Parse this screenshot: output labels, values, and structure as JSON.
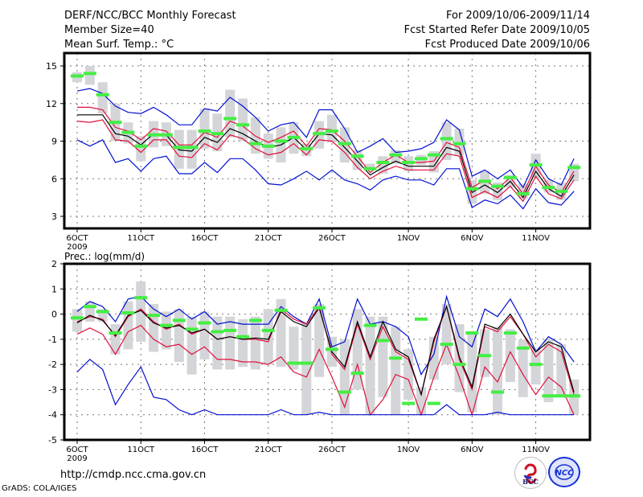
{
  "header": {
    "title": "DERF/NCC/BCC Monthly Forecast",
    "member_size": "Member Size=40",
    "variable": "Mean Surf. Temp.: °C",
    "period": "For 2009/10/06-2009/11/14",
    "start_date": "Fcst Started Refer Date 2009/10/05",
    "produced_date": "Fcst Produced Date 2009/10/06"
  },
  "footer": {
    "url": "http://cmdp.ncc.cma.gov.cn",
    "credit": "GrADS: COLA/IGES",
    "logo_bcc": "BCC",
    "logo_ncc": "NCC"
  },
  "colors": {
    "mean": "#000000",
    "spread": "#e0103a",
    "extreme": "#0010d0",
    "box": "#d4d5d9",
    "median": "#44ee44",
    "grid": "#777777"
  },
  "chart_data": [
    {
      "type": "line",
      "title": "Mean Surf. Temp.: °C",
      "x_ticks": [
        "6OCT",
        "11OCT",
        "16OCT",
        "21OCT",
        "26OCT",
        "1NOV",
        "6NOV",
        "11NOV"
      ],
      "x_tick_days": [
        0,
        5,
        10,
        15,
        20,
        26,
        31,
        36
      ],
      "x_sublabel": "2009",
      "ylim": [
        2,
        16
      ],
      "y_ticks": [
        3,
        6,
        9,
        12,
        15
      ],
      "grid": true,
      "n_days": 40,
      "series": [
        {
          "name": "ensemble-max",
          "color": "extreme",
          "values": [
            13.0,
            13.2,
            12.8,
            11.8,
            11.3,
            11.2,
            11.7,
            11.1,
            10.3,
            10.3,
            11.6,
            11.4,
            12.5,
            11.8,
            10.9,
            9.8,
            10.3,
            10.5,
            9.3,
            11.5,
            11.5,
            10.0,
            8.1,
            8.6,
            9.2,
            8.1,
            8.2,
            8.4,
            8.9,
            10.7,
            9.9,
            6.2,
            6.7,
            6.0,
            6.7,
            5.3,
            7.5,
            6.0,
            5.5,
            7.6
          ]
        },
        {
          "name": "upper-spread",
          "color": "spread",
          "values": [
            11.7,
            11.7,
            11.5,
            10.1,
            9.8,
            9.1,
            10.0,
            9.8,
            8.7,
            8.7,
            9.7,
            9.3,
            10.6,
            10.2,
            9.4,
            8.9,
            9.3,
            9.8,
            8.6,
            10.0,
            9.9,
            9.0,
            7.8,
            6.5,
            7.3,
            7.9,
            7.3,
            7.3,
            7.4,
            8.9,
            8.5,
            5.3,
            5.9,
            5.2,
            6.1,
            4.8,
            7.0,
            5.5,
            4.9,
            6.6
          ]
        },
        {
          "name": "ensemble-mean",
          "color": "mean",
          "values": [
            11.1,
            11.1,
            11.1,
            9.6,
            9.4,
            8.7,
            9.6,
            9.5,
            8.3,
            8.2,
            9.3,
            8.9,
            10.0,
            9.6,
            9.0,
            8.5,
            8.7,
            9.3,
            8.3,
            9.6,
            9.5,
            8.5,
            7.4,
            6.3,
            6.9,
            7.4,
            7.0,
            7.0,
            7.0,
            8.5,
            8.2,
            4.9,
            5.5,
            4.9,
            5.8,
            4.5,
            6.6,
            5.2,
            4.6,
            6.3
          ]
        },
        {
          "name": "lower-spread",
          "color": "spread",
          "values": [
            10.6,
            10.5,
            10.7,
            9.1,
            9.0,
            8.1,
            9.1,
            9.1,
            7.8,
            7.7,
            8.8,
            8.3,
            9.5,
            9.2,
            8.4,
            7.9,
            8.1,
            8.8,
            7.9,
            9.1,
            9.0,
            8.1,
            6.9,
            6.0,
            6.6,
            7.0,
            6.7,
            6.7,
            6.7,
            8.0,
            7.8,
            4.5,
            5.0,
            4.5,
            5.4,
            4.2,
            6.2,
            4.8,
            4.4,
            5.9
          ]
        },
        {
          "name": "ensemble-min",
          "color": "extreme",
          "values": [
            9.1,
            8.6,
            9.1,
            7.3,
            7.6,
            6.6,
            7.6,
            7.8,
            6.4,
            6.4,
            7.3,
            6.5,
            7.6,
            7.6,
            6.7,
            5.6,
            5.5,
            6.0,
            6.6,
            5.9,
            6.7,
            5.9,
            5.6,
            5.1,
            5.9,
            6.2,
            5.9,
            5.9,
            5.5,
            6.8,
            6.8,
            3.7,
            4.3,
            4.0,
            4.7,
            3.6,
            5.2,
            4.1,
            3.9,
            5.0
          ]
        }
      ],
      "boxes": {
        "low": [
          13.7,
          13.5,
          11.2,
          9.0,
          8.8,
          7.4,
          8.5,
          8.6,
          6.8,
          6.8,
          8.4,
          8.2,
          9.3,
          9.0,
          8.0,
          7.6,
          7.3,
          8.0,
          7.8,
          8.4,
          8.9,
          7.3,
          6.7,
          6.9,
          6.4,
          7.2,
          6.6,
          7.1,
          6.5,
          7.5,
          7.9,
          4.0,
          4.8,
          4.3,
          5.3,
          4.4,
          6.1,
          4.9,
          4.3,
          5.8
        ],
        "high": [
          14.5,
          15.0,
          13.7,
          12.0,
          10.5,
          9.4,
          10.6,
          10.5,
          9.9,
          9.9,
          11.6,
          11.2,
          13.1,
          12.4,
          10.9,
          9.6,
          10.1,
          10.5,
          8.8,
          10.6,
          11.1,
          10.1,
          8.3,
          7.2,
          7.8,
          8.3,
          7.8,
          7.9,
          8.2,
          10.5,
          10.0,
          5.9,
          6.6,
          5.7,
          6.3,
          5.6,
          8.0,
          5.9,
          5.7,
          7.2
        ],
        "median": [
          14.2,
          14.4,
          12.7,
          10.5,
          9.7,
          8.6,
          9.5,
          9.5,
          8.5,
          8.5,
          9.8,
          9.6,
          10.8,
          10.3,
          8.8,
          8.6,
          9.0,
          9.3,
          8.4,
          9.6,
          9.8,
          8.8,
          7.8,
          6.8,
          7.3,
          7.9,
          7.3,
          7.6,
          7.9,
          9.2,
          8.8,
          5.2,
          5.8,
          5.4,
          6.1,
          4.8,
          7.1,
          5.3,
          5.0,
          6.9
        ]
      }
    },
    {
      "type": "line",
      "title": "Prec.: log(mm/d)",
      "x_ticks": [
        "6OCT",
        "11OCT",
        "16OCT",
        "21OCT",
        "26OCT",
        "1NOV",
        "6NOV",
        "11NOV"
      ],
      "x_tick_days": [
        0,
        5,
        10,
        15,
        20,
        26,
        31,
        36
      ],
      "x_sublabel": "2009",
      "ylim": [
        -5,
        2
      ],
      "y_ticks": [
        -5,
        -4,
        -3,
        -2,
        -1,
        0,
        1,
        2
      ],
      "grid": true,
      "n_days": 40,
      "series": [
        {
          "name": "ensemble-max",
          "color": "extreme",
          "values": [
            0.1,
            0.5,
            0.3,
            -0.3,
            0.6,
            0.7,
            0.2,
            -0.1,
            0.2,
            -0.2,
            0.1,
            -0.4,
            -0.3,
            -0.4,
            -0.4,
            -0.4,
            0.3,
            -0.1,
            -0.4,
            0.6,
            -1.3,
            -1.1,
            0.6,
            -0.4,
            -0.3,
            -0.5,
            -0.9,
            -2.4,
            -1.6,
            0.7,
            -0.9,
            -1.3,
            0.2,
            -0.1,
            0.6,
            -0.3,
            -1.5,
            -0.9,
            -1.2,
            -1.9
          ]
        },
        {
          "name": "upper-spread",
          "color": "spread",
          "values": [
            -0.3,
            -0.1,
            -0.2,
            -0.9,
            -0.1,
            0.2,
            -0.3,
            -0.6,
            -0.4,
            -0.8,
            -0.6,
            -1.0,
            -0.9,
            -1.0,
            -1.0,
            -1.1,
            0.2,
            -0.2,
            -0.4,
            0.3,
            -1.6,
            -2.2,
            -0.4,
            -1.8,
            -0.5,
            -1.5,
            -1.8,
            -3.2,
            -1.1,
            0.3,
            -1.8,
            -3.0,
            -0.5,
            -0.7,
            -0.1,
            -0.8,
            -1.7,
            -1.2,
            -1.5,
            -3.2
          ]
        },
        {
          "name": "ensemble-mean",
          "color": "mean",
          "values": [
            -0.35,
            -0.05,
            -0.25,
            -0.85,
            -0.05,
            0.15,
            -0.35,
            -0.55,
            -0.45,
            -0.75,
            -0.6,
            -1.0,
            -0.9,
            -1.0,
            -0.95,
            -1.0,
            0.1,
            -0.3,
            -0.5,
            0.25,
            -1.5,
            -2.1,
            -0.3,
            -1.7,
            -0.3,
            -1.4,
            -1.7,
            -3.2,
            -1.0,
            0.3,
            -1.7,
            -2.9,
            -0.4,
            -0.6,
            0.0,
            -0.8,
            -1.5,
            -1.1,
            -1.3,
            -3.1
          ]
        },
        {
          "name": "lower-spread",
          "color": "spread",
          "values": [
            -0.8,
            -0.55,
            -0.8,
            -1.6,
            -0.7,
            -0.45,
            -1.0,
            -1.3,
            -1.2,
            -1.6,
            -1.3,
            -1.8,
            -1.8,
            -1.9,
            -1.9,
            -2.0,
            -1.7,
            -2.3,
            -2.5,
            -1.4,
            -2.5,
            -3.7,
            -2.0,
            -4.0,
            -3.4,
            -2.4,
            -2.6,
            -4.0,
            -2.5,
            -1.2,
            -2.5,
            -4.0,
            -2.1,
            -2.7,
            -1.5,
            -2.4,
            -3.2,
            -2.5,
            -2.9,
            -4.0
          ]
        },
        {
          "name": "ensemble-min",
          "color": "extreme",
          "values": [
            -2.3,
            -1.8,
            -2.2,
            -3.6,
            -2.8,
            -2.1,
            -3.3,
            -3.4,
            -3.8,
            -4.0,
            -3.8,
            -4.0,
            -4.0,
            -4.0,
            -4.0,
            -4.0,
            -3.8,
            -4.0,
            -4.0,
            -3.9,
            -4.0,
            -4.0,
            -4.0,
            -4.0,
            -4.0,
            -4.0,
            -4.0,
            -4.0,
            -4.0,
            -3.6,
            -4.0,
            -4.0,
            -4.0,
            -3.9,
            -4.0,
            -4.0,
            -4.0,
            -4.0,
            -4.0,
            -4.0
          ]
        }
      ],
      "boxes": {
        "low": [
          -0.7,
          -0.3,
          -0.3,
          -1.6,
          -1.4,
          -1.1,
          -1.5,
          -1.4,
          -1.9,
          -2.4,
          -1.8,
          -2.2,
          -2.2,
          -2.1,
          -2.2,
          -2.0,
          -2.1,
          -2.2,
          -4.0,
          -2.5,
          -2.1,
          -4.0,
          -3.0,
          -4.0,
          -3.3,
          -4.0,
          -3.4,
          -4.0,
          -2.6,
          -2.0,
          -3.1,
          -3.9,
          -2.5,
          -4.0,
          -2.7,
          -3.3,
          -2.8,
          -3.5,
          -3.2,
          -4.0
        ],
        "high": [
          0.2,
          0.5,
          0.2,
          -0.4,
          0.5,
          1.3,
          0.4,
          0.1,
          0.2,
          -0.1,
          0.1,
          -0.1,
          -0.1,
          -0.2,
          -0.1,
          0.2,
          0.6,
          -0.5,
          -0.3,
          0.4,
          -0.9,
          -1.0,
          0.2,
          -0.1,
          -0.1,
          -0.5,
          -1.4,
          -2.9,
          -0.9,
          0.4,
          -0.4,
          -0.8,
          -0.6,
          -0.5,
          -0.6,
          -1.0,
          -1.4,
          -1.0,
          -1.2,
          -2.6
        ],
        "median": [
          -0.15,
          0.3,
          0.1,
          -0.75,
          0.05,
          0.65,
          -0.05,
          -0.45,
          -0.25,
          -0.6,
          -0.35,
          -0.7,
          -0.65,
          -0.9,
          -0.25,
          -0.65,
          0.15,
          -1.95,
          -1.95,
          0.25,
          -1.4,
          -3.1,
          -2.35,
          -0.45,
          -1.05,
          -1.75,
          -3.55,
          -0.2,
          -3.55,
          -1.2,
          -2.0,
          -0.75,
          -1.65,
          -3.1,
          -0.75,
          -1.35,
          -2.0,
          -3.25,
          -3.25,
          -3.25
        ]
      }
    }
  ]
}
